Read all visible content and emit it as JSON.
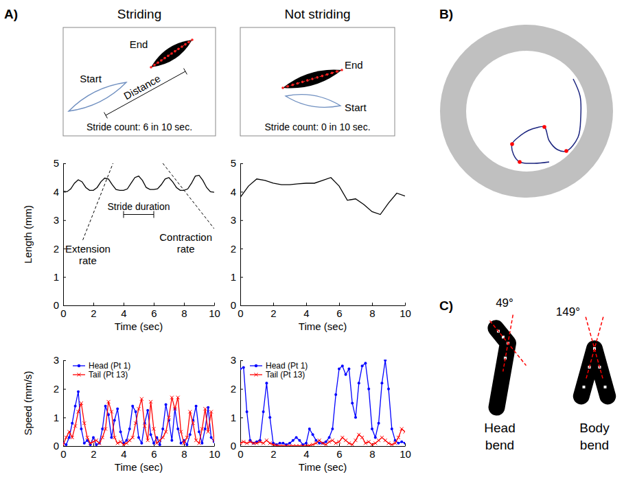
{
  "chart_data": [
    {
      "type": "line",
      "x": [
        0,
        0.25,
        0.5,
        0.75,
        1,
        1.25,
        1.5,
        1.75,
        2,
        2.25,
        2.5,
        2.75,
        3,
        3.25,
        3.5,
        3.75,
        4,
        4.25,
        4.5,
        4.75,
        5,
        5.25,
        5.5,
        5.75,
        6,
        6.25,
        6.5,
        6.75,
        7,
        7.25,
        7.5,
        7.75,
        8,
        8.25,
        8.5,
        8.75,
        9,
        9.25,
        9.5,
        9.75,
        10
      ],
      "values": [
        4.02,
        4.0,
        4.1,
        4.3,
        4.42,
        4.35,
        4.15,
        4.05,
        4.05,
        4.15,
        4.35,
        4.48,
        4.45,
        4.25,
        4.08,
        4.05,
        4.05,
        4.1,
        4.3,
        4.5,
        4.55,
        4.4,
        4.15,
        4.08,
        4.08,
        4.1,
        4.25,
        4.45,
        4.5,
        4.35,
        4.15,
        4.05,
        4.05,
        4.1,
        4.3,
        4.55,
        4.58,
        4.4,
        4.15,
        4.0,
        3.98
      ],
      "color": "#000000",
      "xlim": [
        0,
        10
      ],
      "xticks": [
        0,
        2,
        4,
        6,
        8,
        10
      ],
      "ylim": [
        0,
        5
      ],
      "yticks": [
        0,
        1,
        2,
        3,
        4,
        5
      ],
      "x_label": "Time (sec)",
      "y_label": "Length (mm)",
      "annotations": [
        {
          "text": "Extension rate",
          "x": [
            1.3,
            3.3
          ],
          "y": [
            2.3,
            5
          ]
        },
        {
          "text": "Contraction rate",
          "x": [
            6.6,
            10
          ],
          "y": [
            5,
            2.7
          ]
        },
        {
          "text": "Stride duration",
          "x": [
            4,
            6
          ],
          "y": 3.2
        }
      ]
    },
    {
      "type": "line",
      "x": [
        0,
        0.5,
        1,
        1.5,
        2,
        2.5,
        3,
        3.5,
        4,
        4.5,
        5,
        5.5,
        6,
        6.5,
        7,
        7.5,
        8,
        8.5,
        9,
        9.5,
        10
      ],
      "values": [
        3.8,
        4.2,
        4.45,
        4.4,
        4.3,
        4.25,
        4.25,
        4.28,
        4.3,
        4.3,
        4.4,
        4.5,
        4.2,
        3.7,
        3.75,
        3.55,
        3.3,
        3.2,
        3.6,
        3.95,
        3.85
      ],
      "color": "#000000",
      "xlim": [
        0,
        10
      ],
      "xticks": [
        0,
        2,
        4,
        6,
        8,
        10
      ],
      "ylim": [
        0,
        5
      ],
      "yticks": [
        0,
        1,
        2,
        3,
        4,
        5
      ],
      "x_label": "Time (sec)"
    },
    {
      "type": "line",
      "x": [
        0,
        0.2,
        0.4,
        0.6,
        0.8,
        1,
        1.2,
        1.4,
        1.6,
        1.8,
        2,
        2.2,
        2.4,
        2.6,
        2.8,
        3,
        3.2,
        3.4,
        3.6,
        3.8,
        4,
        4.2,
        4.4,
        4.6,
        4.8,
        5,
        5.2,
        5.4,
        5.6,
        5.8,
        6,
        6.2,
        6.4,
        6.6,
        6.8,
        7,
        7.2,
        7.4,
        7.6,
        7.8,
        8,
        8.2,
        8.4,
        8.6,
        8.8,
        9,
        9.2,
        9.4,
        9.6,
        9.8,
        10
      ],
      "series": [
        {
          "name": "Head (Pt 1)",
          "color": "#0000ff",
          "marker": "dot",
          "values": [
            0.1,
            0.05,
            0.3,
            0.8,
            1.4,
            1.9,
            0.6,
            0.1,
            0.2,
            0.05,
            0.3,
            0.05,
            0.1,
            0.6,
            1.4,
            1.1,
            0.3,
            0.9,
            1.3,
            0.5,
            0.1,
            0.2,
            0.6,
            1.4,
            1.2,
            0.3,
            0.1,
            0.8,
            1.25,
            0.4,
            0.1,
            0.3,
            0.05,
            0.6,
            1.45,
            0.9,
            0.2,
            1.3,
            0.6,
            0.1,
            0.2,
            0.05,
            0.4,
            0.9,
            1.4,
            0.5,
            0.1,
            0.6,
            1.35,
            0.3,
            0.15
          ]
        },
        {
          "name": "Tail (Pt 13)",
          "color": "#ff0000",
          "marker": "x",
          "values": [
            0.05,
            0.3,
            0.5,
            0.3,
            0.7,
            1.2,
            1.5,
            0.8,
            0.3,
            0.1,
            0.15,
            0.2,
            0.1,
            0.3,
            0.6,
            1.55,
            1.2,
            0.3,
            0.1,
            0.15,
            0.05,
            0.1,
            0.2,
            0.3,
            0.8,
            1.3,
            1.65,
            0.7,
            0.2,
            1.55,
            0.6,
            0.1,
            0.2,
            0.3,
            0.5,
            1.0,
            1.7,
            1.3,
            1.7,
            0.5,
            0.1,
            0.3,
            1.2,
            0.8,
            0.2,
            0.1,
            0.6,
            1.3,
            0.5,
            1.2,
            0.2
          ]
        }
      ],
      "xlim": [
        0,
        10
      ],
      "xticks": [
        0,
        2,
        4,
        6,
        8,
        10
      ],
      "ylim": [
        0,
        3
      ],
      "yticks": [
        0,
        1,
        2,
        3
      ],
      "x_label": "Time (sec)",
      "y_label": "Speed (mm/s)",
      "legend": "upper left"
    },
    {
      "type": "line",
      "x": [
        0,
        0.2,
        0.4,
        0.6,
        0.8,
        1,
        1.2,
        1.4,
        1.6,
        1.8,
        2,
        2.2,
        2.4,
        2.6,
        2.8,
        3,
        3.2,
        3.4,
        3.6,
        3.8,
        4,
        4.2,
        4.4,
        4.6,
        4.8,
        5,
        5.2,
        5.4,
        5.6,
        5.8,
        6,
        6.2,
        6.4,
        6.6,
        6.8,
        7,
        7.2,
        7.4,
        7.6,
        7.8,
        8,
        8.2,
        8.4,
        8.6,
        8.8,
        9,
        9.2,
        9.4,
        9.6,
        9.8,
        10
      ],
      "series": [
        {
          "name": "Head (Pt 1)",
          "color": "#0000ff",
          "marker": "dot",
          "values": [
            2.7,
            2.75,
            1.2,
            0.2,
            0.1,
            0.15,
            0.2,
            1.2,
            2.2,
            1.0,
            0.1,
            0.05,
            0.1,
            0.1,
            0.05,
            0.1,
            0.2,
            0.3,
            0.2,
            0.05,
            0.1,
            0.6,
            0.4,
            0.2,
            0.1,
            0.1,
            0.15,
            0.3,
            0.6,
            1.8,
            2.7,
            2.8,
            2.5,
            2.7,
            1.5,
            1.0,
            2.2,
            2.8,
            2.9,
            2.0,
            0.6,
            0.3,
            0.8,
            2.2,
            3.0,
            2.0,
            0.6,
            0.2,
            0.1,
            0.15,
            0.1
          ]
        },
        {
          "name": "Tail (Pt 13)",
          "color": "#ff0000",
          "marker": "x",
          "values": [
            0.1,
            0.15,
            0.1,
            0.15,
            0.1,
            0.1,
            0.15,
            0.1,
            0.2,
            0.1,
            0.05,
            0.02,
            0,
            0,
            0,
            0,
            0,
            0,
            0,
            0,
            0,
            0.02,
            0.05,
            0.1,
            0.2,
            0.1,
            0.05,
            0.15,
            0.2,
            0.1,
            0.15,
            0.3,
            0.2,
            0.1,
            0.05,
            0.2,
            0.4,
            0.3,
            0.1,
            0.15,
            0.05,
            0.1,
            0.2,
            0.3,
            0.2,
            0.1,
            0.05,
            0.1,
            0.3,
            0.6,
            0.5
          ]
        }
      ],
      "xlim": [
        0,
        10
      ],
      "xticks": [
        0,
        2,
        4,
        6,
        8,
        10
      ],
      "ylim": [
        0,
        3
      ],
      "yticks": [
        0,
        1,
        2,
        3
      ],
      "x_label": "Time (sec)",
      "legend": "upper left"
    }
  ],
  "figure": {
    "panel_labels": [
      "A)",
      "B)",
      "C)"
    ],
    "columns": [
      {
        "title": "Striding",
        "labels": {
          "start": "Start",
          "end": "End",
          "distance": "Distance"
        },
        "caption": "Stride count: 6 in 10 sec."
      },
      {
        "title": "Not striding",
        "labels": {
          "start": "Start",
          "end": "End"
        },
        "caption": "Stride count: 0 in 10 sec."
      }
    ],
    "bends": [
      {
        "label": "Head bend",
        "angle": 49,
        "angle_label": "49°"
      },
      {
        "label": "Body bend",
        "angle": 149,
        "angle_label": "149°"
      }
    ]
  }
}
